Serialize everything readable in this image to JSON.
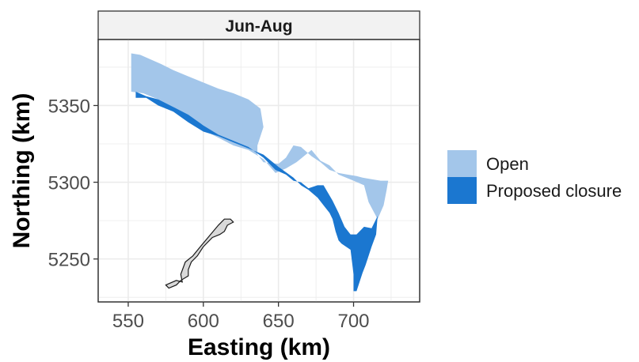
{
  "chart_data": {
    "type": "map",
    "facet_label": "Jun-Aug",
    "xlabel": "Easting (km)",
    "ylabel": "Northing (km)",
    "x_ticks": [
      "550",
      "600",
      "650",
      "700"
    ],
    "y_ticks": [
      "5250",
      "5300",
      "5350"
    ],
    "xlim": [
      530,
      744
    ],
    "ylim": [
      5222,
      5393
    ],
    "grid": true,
    "legend_position": "right",
    "legend": [
      {
        "label": "Open",
        "color": "#a3c6ea"
      },
      {
        "label": "Proposed closure",
        "color": "#1b77d0"
      }
    ],
    "regions": [
      {
        "name": "Open",
        "polygon": [
          [
            552,
            5384
          ],
          [
            558,
            5383
          ],
          [
            565,
            5380
          ],
          [
            572,
            5377
          ],
          [
            580,
            5373
          ],
          [
            590,
            5369
          ],
          [
            600,
            5365
          ],
          [
            610,
            5361
          ],
          [
            620,
            5358
          ],
          [
            630,
            5354
          ],
          [
            638,
            5348
          ],
          [
            640,
            5336
          ],
          [
            636,
            5324
          ],
          [
            636,
            5318
          ],
          [
            640,
            5313
          ],
          [
            650,
            5312
          ],
          [
            655,
            5316
          ],
          [
            660,
            5324
          ],
          [
            665,
            5323
          ],
          [
            672,
            5317
          ],
          [
            678,
            5313
          ],
          [
            684,
            5308
          ],
          [
            690,
            5306
          ],
          [
            696,
            5305
          ],
          [
            702,
            5304
          ],
          [
            706,
            5303
          ],
          [
            712,
            5302
          ],
          [
            718,
            5301
          ],
          [
            723,
            5301
          ],
          [
            722,
            5295
          ],
          [
            720,
            5285
          ],
          [
            716,
            5276
          ],
          [
            710,
            5287
          ],
          [
            707,
            5298
          ],
          [
            700,
            5301
          ],
          [
            690,
            5305
          ],
          [
            684,
            5311
          ],
          [
            678,
            5314
          ],
          [
            672,
            5321
          ],
          [
            662,
            5313
          ],
          [
            655,
            5309
          ],
          [
            648,
            5306
          ],
          [
            640,
            5315
          ],
          [
            630,
            5321
          ],
          [
            620,
            5324
          ],
          [
            610,
            5329
          ],
          [
            600,
            5334
          ],
          [
            590,
            5340
          ],
          [
            580,
            5349
          ],
          [
            570,
            5354
          ],
          [
            560,
            5358
          ],
          [
            552,
            5359
          ]
        ]
      },
      {
        "name": "Proposed closure",
        "polygon": [
          [
            555,
            5359
          ],
          [
            562,
            5356
          ],
          [
            570,
            5354
          ],
          [
            580,
            5349
          ],
          [
            590,
            5344
          ],
          [
            600,
            5337
          ],
          [
            610,
            5331
          ],
          [
            620,
            5327
          ],
          [
            630,
            5323
          ],
          [
            640,
            5316
          ],
          [
            648,
            5308
          ],
          [
            655,
            5305
          ],
          [
            660,
            5301
          ],
          [
            665,
            5300
          ],
          [
            670,
            5296
          ],
          [
            676,
            5298
          ],
          [
            680,
            5298
          ],
          [
            686,
            5288
          ],
          [
            690,
            5280
          ],
          [
            694,
            5271
          ],
          [
            698,
            5266
          ],
          [
            702,
            5266
          ],
          [
            707,
            5271
          ],
          [
            712,
            5270
          ],
          [
            716,
            5278
          ],
          [
            715,
            5266
          ],
          [
            712,
            5258
          ],
          [
            708,
            5246
          ],
          [
            706,
            5241
          ],
          [
            704,
            5235
          ],
          [
            702,
            5229
          ],
          [
            700,
            5229
          ],
          [
            700,
            5240
          ],
          [
            698,
            5256
          ],
          [
            692,
            5260
          ],
          [
            690,
            5262
          ],
          [
            688,
            5268
          ],
          [
            686,
            5276
          ],
          [
            684,
            5280
          ],
          [
            680,
            5285
          ],
          [
            676,
            5290
          ],
          [
            670,
            5295
          ],
          [
            665,
            5298
          ],
          [
            660,
            5303
          ],
          [
            650,
            5310
          ],
          [
            640,
            5318
          ],
          [
            630,
            5322
          ],
          [
            620,
            5326
          ],
          [
            610,
            5330
          ],
          [
            600,
            5333
          ],
          [
            590,
            5339
          ],
          [
            580,
            5346
          ],
          [
            570,
            5350
          ],
          [
            562,
            5355
          ],
          [
            555,
            5355
          ]
        ]
      }
    ],
    "land_outline": {
      "name": "island",
      "polygon": [
        [
          575,
          5233
        ],
        [
          582,
          5236
        ],
        [
          586,
          5235
        ],
        [
          585,
          5240
        ],
        [
          588,
          5248
        ],
        [
          593,
          5252
        ],
        [
          598,
          5258
        ],
        [
          604,
          5265
        ],
        [
          610,
          5272
        ],
        [
          614,
          5276
        ],
        [
          618,
          5276
        ],
        [
          620,
          5274
        ],
        [
          616,
          5272
        ],
        [
          614,
          5268
        ],
        [
          611,
          5266
        ],
        [
          606,
          5264
        ],
        [
          600,
          5258
        ],
        [
          596,
          5252
        ],
        [
          592,
          5248
        ],
        [
          590,
          5243
        ],
        [
          590,
          5239
        ],
        [
          585,
          5236
        ],
        [
          582,
          5233
        ],
        [
          577,
          5231
        ]
      ]
    }
  }
}
